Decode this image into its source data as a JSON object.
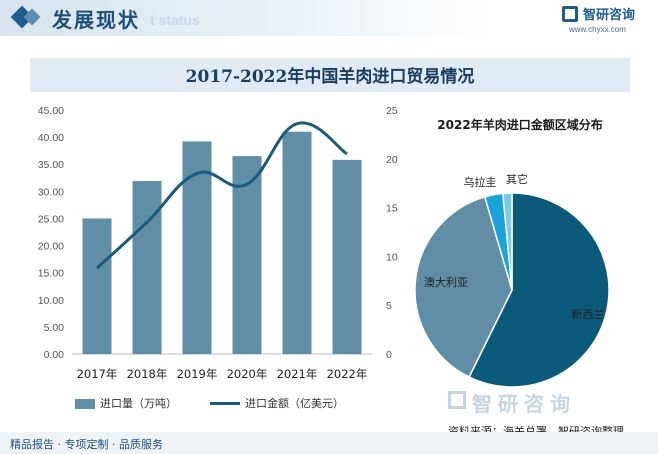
{
  "header": {
    "title": "发展现状",
    "watermark": "t status",
    "brand_name": "智研咨询",
    "brand_url": "www.chyxx.com"
  },
  "chart_data": [
    {
      "type": "bar",
      "title": "2017-2022年中国羊肉进口贸易情况",
      "categories": [
        "2017年",
        "2018年",
        "2019年",
        "2020年",
        "2021年",
        "2022年"
      ],
      "series": [
        {
          "name": "进口量（万吨）",
          "type": "bar",
          "axis": "left",
          "values": [
            25.0,
            31.9,
            39.2,
            36.5,
            41.0,
            35.8
          ]
        },
        {
          "name": "进口金额（亿美元）",
          "type": "line",
          "axis": "right",
          "values": [
            8.8,
            13.5,
            18.5,
            17.4,
            23.6,
            20.5
          ]
        }
      ],
      "y_left": {
        "min": 0,
        "max": 45,
        "step": 5,
        "ticks": [
          "0.00",
          "5.00",
          "10.00",
          "15.00",
          "20.00",
          "25.00",
          "30.00",
          "35.00",
          "40.00",
          "45.00"
        ]
      },
      "y_right": {
        "min": 0,
        "max": 25,
        "step": 5,
        "ticks": [
          "0",
          "5",
          "10",
          "15",
          "20",
          "25"
        ]
      },
      "legend_position": "bottom",
      "grid": false,
      "colors": {
        "bar": "#5f8ea6",
        "line": "#1a5a7a"
      }
    },
    {
      "type": "pie",
      "title": "2022年羊肉进口金额区域分布",
      "slices": [
        {
          "label": "新西兰",
          "value": 57.0,
          "color": "#0b5a7a"
        },
        {
          "label": "澳大利亚",
          "value": 38.0,
          "color": "#5f8ea6"
        },
        {
          "label": "乌拉圭",
          "value": 3.0,
          "color": "#1aa3d9"
        },
        {
          "label": "其它",
          "value": 1.5,
          "color": "#7ec8ea"
        }
      ]
    }
  ],
  "watermark_bottom": "智研咨询",
  "source": "资料来源：海关总署、智研咨询整理",
  "footer": "精品报告 · 专项定制 · 品质服务"
}
